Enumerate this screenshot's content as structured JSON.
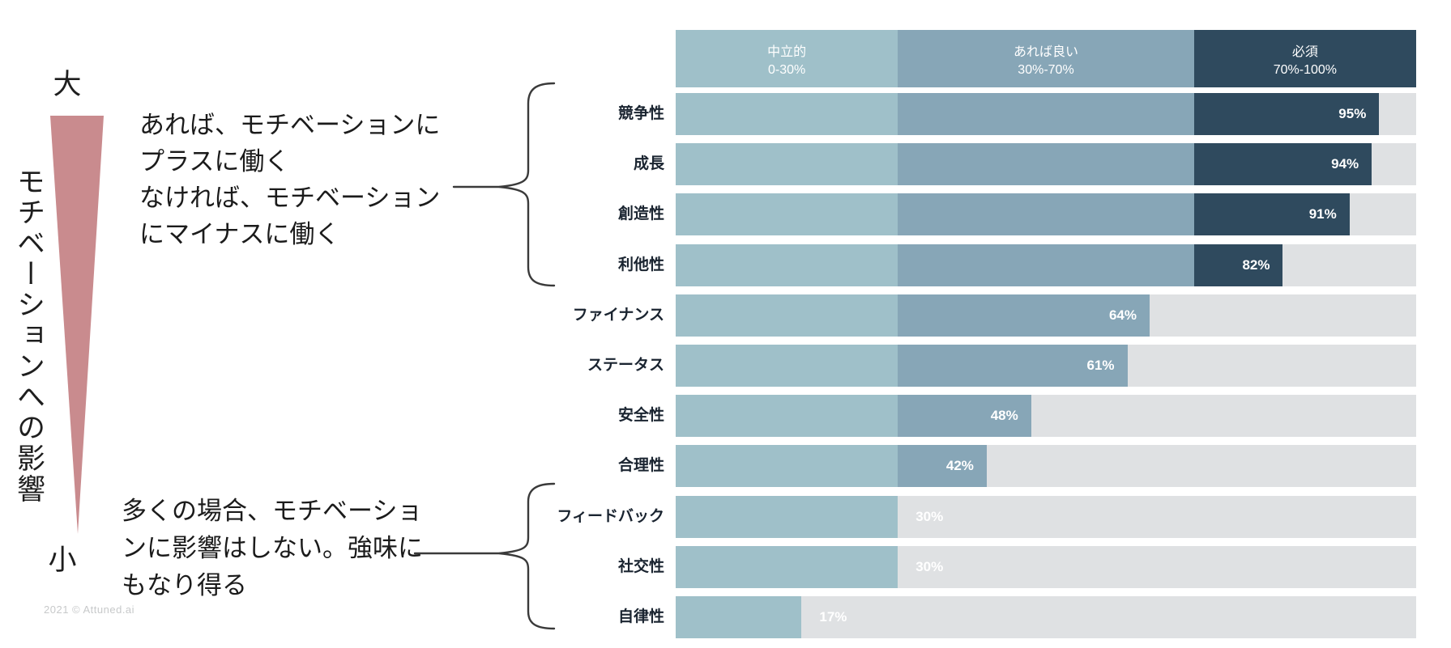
{
  "page": {
    "background": "#ffffff"
  },
  "left_axis": {
    "top_label": "大",
    "bottom_label": "小",
    "title": "モチベーションへの影響",
    "arrow_color": "#c98b8e"
  },
  "annotations": {
    "positive": {
      "lines": [
        "あれば、モチベーションに",
        "プラスに働く",
        "なければ、モチベーション",
        "にマイナスに働く"
      ]
    },
    "neutral": {
      "lines": [
        "多くの場合、モチベーショ",
        "ンに影響はしない。強味に",
        "もなり得る"
      ]
    }
  },
  "footer": {
    "copyright": "2021 © Attuned.ai"
  },
  "chart_data": {
    "type": "bar",
    "orientation": "horizontal",
    "xlim": [
      0,
      100
    ],
    "unit": "%",
    "categories": [
      "競争性",
      "成長",
      "創造性",
      "利他性",
      "ファイナンス",
      "ステータス",
      "安全性",
      "合理性",
      "フィードバック",
      "社交性",
      "自律性"
    ],
    "values": [
      95,
      94,
      91,
      82,
      64,
      61,
      48,
      42,
      30,
      30,
      17
    ],
    "value_labels": [
      "95%",
      "94%",
      "91%",
      "82%",
      "64%",
      "61%",
      "48%",
      "42%",
      "30%",
      "30%",
      "17%"
    ],
    "zones": [
      {
        "label": "中立的",
        "range_label": "0-30%",
        "from": 0,
        "to": 30,
        "color": "#9fc0c9"
      },
      {
        "label": "あれば良い",
        "range_label": "30%-70%",
        "from": 30,
        "to": 70,
        "color": "#87a6b7"
      },
      {
        "label": "必須",
        "range_label": "70%-100%",
        "from": 70,
        "to": 100,
        "color": "#2f4a5e"
      }
    ],
    "track_color": "#dfe1e3",
    "value_label_color": "#ffffff",
    "category_label_color": "#1a2430",
    "legend_position": "top",
    "grid": false
  }
}
